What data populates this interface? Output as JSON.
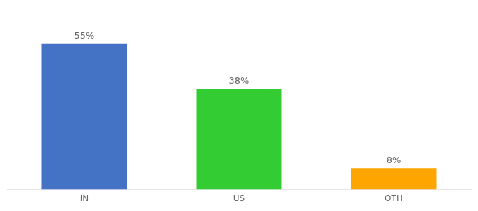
{
  "chart_data": {
    "type": "bar",
    "categories": [
      "IN",
      "US",
      "OTH"
    ],
    "values": [
      55,
      38,
      8
    ],
    "value_labels": [
      "55%",
      "38%",
      "8%"
    ],
    "data_labels": true,
    "colors": [
      "#4472C4",
      "#33CC33",
      "#FFA500"
    ],
    "ylim": [
      0,
      65
    ],
    "grid": false,
    "tick_labels": "x"
  }
}
